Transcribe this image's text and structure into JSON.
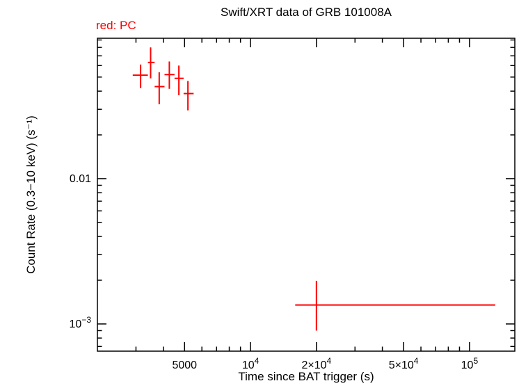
{
  "chart_data": {
    "type": "scatter",
    "title": "Swift/XRT data of GRB 101008A",
    "legend": "red: PC",
    "xlabel": "Time since BAT trigger (s)",
    "ylabel": "Count Rate (0.3−10 keV) (s⁻¹)",
    "x_scale": "log",
    "y_scale": "log",
    "xlim": [
      2000,
      161000
    ],
    "ylim": [
      0.00065,
      0.0925
    ],
    "grid": false,
    "legend_position": "top-left",
    "x_ticks": [
      {
        "value": 5000,
        "label": "5000"
      },
      {
        "value": 10000,
        "label": "10^4"
      },
      {
        "value": 20000,
        "label": "2×10^4"
      },
      {
        "value": 50000,
        "label": "5×10^4"
      },
      {
        "value": 100000,
        "label": "10^5"
      }
    ],
    "y_ticks": [
      {
        "value": 0.01,
        "label": "0.01"
      },
      {
        "value": 0.001,
        "label": "10^−3"
      }
    ],
    "series": [
      {
        "name": "PC",
        "color": "#ff0000",
        "marker": "cross-error-bars",
        "points": [
          {
            "t": 3150,
            "t_lo": 2900,
            "t_hi": 3400,
            "rate": 0.0515,
            "rate_lo": 0.042,
            "rate_hi": 0.061
          },
          {
            "t": 3500,
            "t_lo": 3400,
            "t_hi": 3650,
            "rate": 0.063,
            "rate_lo": 0.049,
            "rate_hi": 0.08
          },
          {
            "t": 3830,
            "t_lo": 3650,
            "t_hi": 4050,
            "rate": 0.043,
            "rate_lo": 0.0325,
            "rate_hi": 0.054
          },
          {
            "t": 4260,
            "t_lo": 4050,
            "t_hi": 4500,
            "rate": 0.052,
            "rate_lo": 0.0415,
            "rate_hi": 0.064
          },
          {
            "t": 4710,
            "t_lo": 4500,
            "t_hi": 4950,
            "rate": 0.049,
            "rate_lo": 0.0375,
            "rate_hi": 0.06
          },
          {
            "t": 5180,
            "t_lo": 4950,
            "t_hi": 5500,
            "rate": 0.0385,
            "rate_lo": 0.0295,
            "rate_hi": 0.047
          },
          {
            "t": 20000,
            "t_lo": 16000,
            "t_hi": 131000,
            "rate": 0.00135,
            "rate_lo": 0.0009,
            "rate_hi": 0.00198
          }
        ]
      }
    ]
  },
  "colors": {
    "background": "#ffffff",
    "axis": "#000000",
    "pc_mode": "#ff0000"
  }
}
